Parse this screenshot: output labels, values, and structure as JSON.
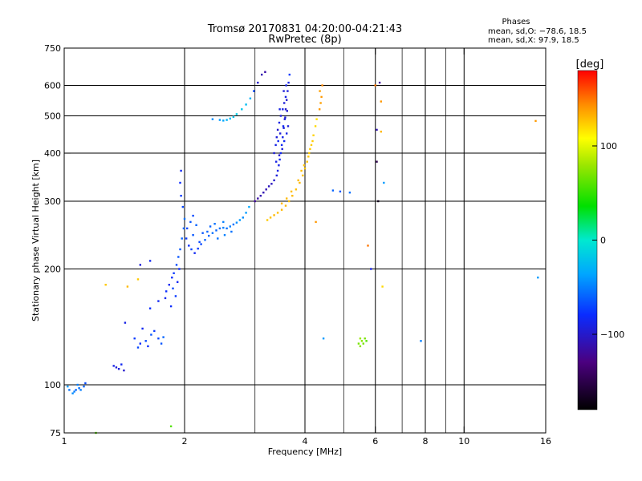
{
  "chart_data": {
    "type": "scatter",
    "title": "Tromsø 20170831 04:20:00-04:21:43",
    "subtitle": "RwPretec (8p)",
    "stats": {
      "heading": "Phases",
      "o_line": "mean, sd,O: −78.6, 18.5",
      "x_line": "mean, sd,X:  97.9, 18.5"
    },
    "xlabel": "Frequency [MHz]",
    "ylabel": "Stationary phase Virtual Height [km]",
    "x_scale": "log",
    "y_scale": "log",
    "xlim": [
      1,
      16
    ],
    "ylim": [
      75,
      750
    ],
    "x_ticks": [
      {
        "v": 1,
        "label": "1"
      },
      {
        "v": 2,
        "label": "2"
      },
      {
        "v": 4,
        "label": "4"
      },
      {
        "v": 6,
        "label": "6"
      },
      {
        "v": 8,
        "label": "8"
      },
      {
        "v": 10,
        "label": "10"
      },
      {
        "v": 16,
        "label": "16"
      }
    ],
    "x_major_grid": [
      2,
      4,
      6,
      8,
      10
    ],
    "x_minor_grid": [
      3,
      5,
      7,
      9
    ],
    "y_ticks": [
      {
        "v": 75,
        "label": "75"
      },
      {
        "v": 100,
        "label": "100"
      },
      {
        "v": 200,
        "label": "200"
      },
      {
        "v": 300,
        "label": "300"
      },
      {
        "v": 400,
        "label": "400"
      },
      {
        "v": 500,
        "label": "500"
      },
      {
        "v": 600,
        "label": "600"
      },
      {
        "v": 750,
        "label": "750"
      }
    ],
    "y_grid": [
      100,
      200,
      300,
      400,
      500,
      600
    ],
    "grid": true,
    "colorbar": {
      "label": "[deg]",
      "min": -180,
      "max": 180,
      "ticks": [
        {
          "v": 100,
          "label": "100"
        },
        {
          "v": 0,
          "label": "0"
        },
        {
          "v": -100,
          "label": "−100"
        }
      ]
    },
    "series": [
      {
        "points": [
          [
            1.03,
            97,
            -55
          ],
          [
            1.06,
            96,
            -50
          ],
          [
            1.09,
            98,
            -55
          ],
          [
            1.12,
            99,
            -60
          ],
          [
            1.05,
            95,
            -45
          ],
          [
            1.08,
            100,
            -50
          ],
          [
            1.13,
            101,
            -70
          ],
          [
            1.02,
            99,
            -40
          ],
          [
            1.07,
            97,
            -60
          ],
          [
            1.1,
            97,
            -50
          ],
          [
            1.33,
            112,
            -90
          ],
          [
            1.37,
            110,
            -95
          ],
          [
            1.41,
            109,
            -100
          ],
          [
            1.35,
            111,
            -95
          ],
          [
            1.39,
            113,
            -85
          ],
          [
            1.5,
            132,
            -75
          ],
          [
            1.55,
            128,
            -80
          ],
          [
            1.6,
            130,
            -70
          ],
          [
            1.65,
            135,
            -65
          ],
          [
            1.68,
            138,
            -75
          ],
          [
            1.72,
            132,
            -70
          ],
          [
            1.57,
            140,
            -85
          ],
          [
            1.62,
            126,
            -80
          ],
          [
            1.53,
            125,
            -70
          ],
          [
            1.75,
            128,
            -65
          ],
          [
            1.77,
            133,
            -60
          ],
          [
            1.42,
            145,
            -90
          ],
          [
            1.64,
            158,
            -80
          ],
          [
            1.72,
            165,
            -85
          ],
          [
            1.8,
            175,
            -80
          ],
          [
            1.83,
            182,
            -85
          ],
          [
            1.86,
            190,
            -80
          ],
          [
            1.88,
            195,
            -75
          ],
          [
            1.91,
            205,
            -70
          ],
          [
            1.93,
            215,
            -65
          ],
          [
            1.95,
            225,
            -65
          ],
          [
            1.97,
            240,
            -60
          ],
          [
            1.99,
            255,
            -60
          ],
          [
            2.0,
            270,
            -55
          ],
          [
            1.98,
            290,
            -70
          ],
          [
            1.96,
            310,
            -75
          ],
          [
            1.95,
            335,
            -80
          ],
          [
            1.96,
            360,
            -85
          ],
          [
            1.85,
            160,
            -80
          ],
          [
            1.9,
            170,
            -75
          ],
          [
            1.92,
            185,
            -85
          ],
          [
            1.94,
            200,
            -80
          ],
          [
            1.87,
            178,
            -70
          ],
          [
            1.79,
            168,
            -85
          ],
          [
            1.55,
            205,
            -95
          ],
          [
            1.64,
            210,
            -85
          ],
          [
            1.27,
            182,
            125
          ],
          [
            1.44,
            180,
            130
          ],
          [
            1.53,
            188,
            125
          ],
          [
            2.02,
            240,
            -75
          ],
          [
            2.05,
            230,
            -80
          ],
          [
            2.08,
            225,
            -70
          ],
          [
            2.12,
            220,
            -85
          ],
          [
            2.16,
            226,
            -75
          ],
          [
            2.2,
            232,
            -70
          ],
          [
            2.25,
            238,
            -60
          ],
          [
            2.3,
            244,
            -60
          ],
          [
            2.35,
            248,
            -55
          ],
          [
            2.4,
            252,
            -60
          ],
          [
            2.45,
            255,
            -55
          ],
          [
            2.5,
            256,
            -50
          ],
          [
            2.55,
            255,
            -55
          ],
          [
            2.6,
            258,
            -50
          ],
          [
            2.65,
            261,
            -55
          ],
          [
            2.7,
            264,
            -45
          ],
          [
            2.75,
            268,
            -40
          ],
          [
            2.8,
            272,
            -45
          ],
          [
            2.85,
            280,
            -40
          ],
          [
            2.9,
            290,
            -35
          ],
          [
            2.03,
            255,
            -70
          ],
          [
            2.07,
            265,
            -65
          ],
          [
            2.1,
            275,
            -70
          ],
          [
            2.14,
            260,
            -60
          ],
          [
            2.22,
            248,
            -65
          ],
          [
            2.32,
            258,
            -60
          ],
          [
            2.42,
            240,
            -55
          ],
          [
            2.52,
            245,
            -50
          ],
          [
            2.62,
            250,
            -55
          ],
          [
            2.1,
            245,
            -65
          ],
          [
            2.18,
            235,
            -70
          ],
          [
            2.28,
            250,
            -60
          ],
          [
            2.38,
            262,
            -55
          ],
          [
            2.5,
            265,
            -50
          ],
          [
            2.35,
            490,
            -45
          ],
          [
            2.45,
            488,
            -40
          ],
          [
            2.5,
            486,
            -35
          ],
          [
            2.55,
            488,
            -30
          ],
          [
            2.6,
            492,
            -25
          ],
          [
            2.65,
            497,
            -20
          ],
          [
            2.7,
            505,
            -15
          ],
          [
            2.78,
            520,
            -20
          ],
          [
            2.85,
            535,
            -25
          ],
          [
            2.92,
            555,
            -30
          ],
          [
            2.98,
            580,
            -70
          ],
          [
            3.05,
            610,
            -100
          ],
          [
            3.12,
            640,
            -110
          ],
          [
            3.18,
            650,
            -115
          ],
          [
            3.0,
            300,
            -120
          ],
          [
            3.05,
            305,
            -115
          ],
          [
            3.1,
            310,
            -110
          ],
          [
            3.15,
            316,
            -110
          ],
          [
            3.2,
            322,
            -110
          ],
          [
            3.25,
            328,
            -105
          ],
          [
            3.3,
            333,
            -105
          ],
          [
            3.35,
            340,
            -100
          ],
          [
            3.4,
            350,
            -95
          ],
          [
            3.42,
            360,
            -90
          ],
          [
            3.44,
            372,
            -90
          ],
          [
            3.46,
            385,
            -85
          ],
          [
            3.48,
            400,
            -85
          ],
          [
            3.5,
            420,
            -85
          ],
          [
            3.52,
            440,
            -90
          ],
          [
            3.54,
            465,
            -95
          ],
          [
            3.56,
            490,
            -95
          ],
          [
            3.58,
            520,
            -100
          ],
          [
            3.6,
            550,
            -100
          ],
          [
            3.62,
            580,
            -95
          ],
          [
            3.64,
            610,
            -90
          ],
          [
            3.66,
            640,
            -75
          ],
          [
            3.35,
            400,
            -95
          ],
          [
            3.38,
            420,
            -90
          ],
          [
            3.4,
            440,
            -95
          ],
          [
            3.42,
            460,
            -100
          ],
          [
            3.45,
            480,
            -90
          ],
          [
            3.48,
            500,
            -95
          ],
          [
            3.52,
            520,
            -90
          ],
          [
            3.55,
            540,
            -95
          ],
          [
            3.58,
            560,
            -90
          ],
          [
            3.43,
            430,
            -85
          ],
          [
            3.47,
            450,
            -95
          ],
          [
            3.53,
            470,
            -85
          ],
          [
            3.57,
            495,
            -95
          ],
          [
            3.61,
            515,
            -100
          ],
          [
            3.39,
            380,
            -90
          ],
          [
            3.45,
            395,
            -100
          ],
          [
            3.51,
            410,
            -95
          ],
          [
            3.55,
            430,
            -85
          ],
          [
            3.6,
            450,
            -90
          ],
          [
            3.63,
            470,
            -95
          ],
          [
            3.46,
            520,
            -90
          ],
          [
            3.54,
            580,
            -95
          ],
          [
            3.59,
            600,
            -90
          ],
          [
            3.22,
            268,
            125
          ],
          [
            3.28,
            272,
            128
          ],
          [
            3.35,
            276,
            130
          ],
          [
            3.42,
            280,
            128
          ],
          [
            3.5,
            285,
            130
          ],
          [
            3.58,
            292,
            130
          ],
          [
            3.65,
            300,
            128
          ],
          [
            3.72,
            310,
            130
          ],
          [
            3.8,
            322,
            128
          ],
          [
            3.88,
            335,
            130
          ],
          [
            3.95,
            350,
            128
          ],
          [
            4.0,
            365,
            126
          ],
          [
            4.05,
            380,
            128
          ],
          [
            4.1,
            400,
            125
          ],
          [
            4.15,
            420,
            124
          ],
          [
            4.2,
            445,
            122
          ],
          [
            4.25,
            470,
            120
          ],
          [
            4.28,
            490,
            118
          ],
          [
            3.6,
            305,
            130
          ],
          [
            3.7,
            318,
            128
          ],
          [
            3.85,
            340,
            130
          ],
          [
            3.98,
            372,
            128
          ],
          [
            4.08,
            392,
            126
          ],
          [
            4.18,
            430,
            124
          ],
          [
            3.5,
            296,
            130
          ],
          [
            3.92,
            360,
            128
          ],
          [
            4.12,
            410,
            125
          ],
          [
            4.35,
            520,
            140
          ],
          [
            4.38,
            540,
            138
          ],
          [
            4.4,
            560,
            140
          ],
          [
            4.42,
            600,
            145
          ],
          [
            4.36,
            580,
            138
          ],
          [
            4.45,
            132,
            -40
          ],
          [
            4.7,
            320,
            -60
          ],
          [
            4.9,
            318,
            -65
          ],
          [
            5.18,
            316,
            -55
          ],
          [
            4.26,
            265,
            140
          ],
          [
            5.45,
            128,
            70
          ],
          [
            5.5,
            132,
            80
          ],
          [
            5.55,
            130,
            75
          ],
          [
            5.6,
            128,
            70
          ],
          [
            5.65,
            132,
            70
          ],
          [
            5.7,
            130,
            60
          ],
          [
            5.5,
            126,
            75
          ],
          [
            5.75,
            230,
            150
          ],
          [
            5.85,
            200,
            -90
          ],
          [
            6.0,
            600,
            150
          ],
          [
            6.05,
            460,
            -110
          ],
          [
            6.05,
            380,
            -150
          ],
          [
            6.1,
            300,
            -170
          ],
          [
            6.15,
            610,
            -120
          ],
          [
            6.2,
            545,
            140
          ],
          [
            6.2,
            455,
            130
          ],
          [
            6.25,
            180,
            120
          ],
          [
            6.3,
            335,
            -40
          ],
          [
            7.8,
            130,
            -50
          ],
          [
            15.1,
            485,
            140
          ],
          [
            15.3,
            190,
            -40
          ],
          [
            1.85,
            78,
            60
          ],
          [
            1.2,
            75,
            60
          ]
        ]
      }
    ]
  }
}
